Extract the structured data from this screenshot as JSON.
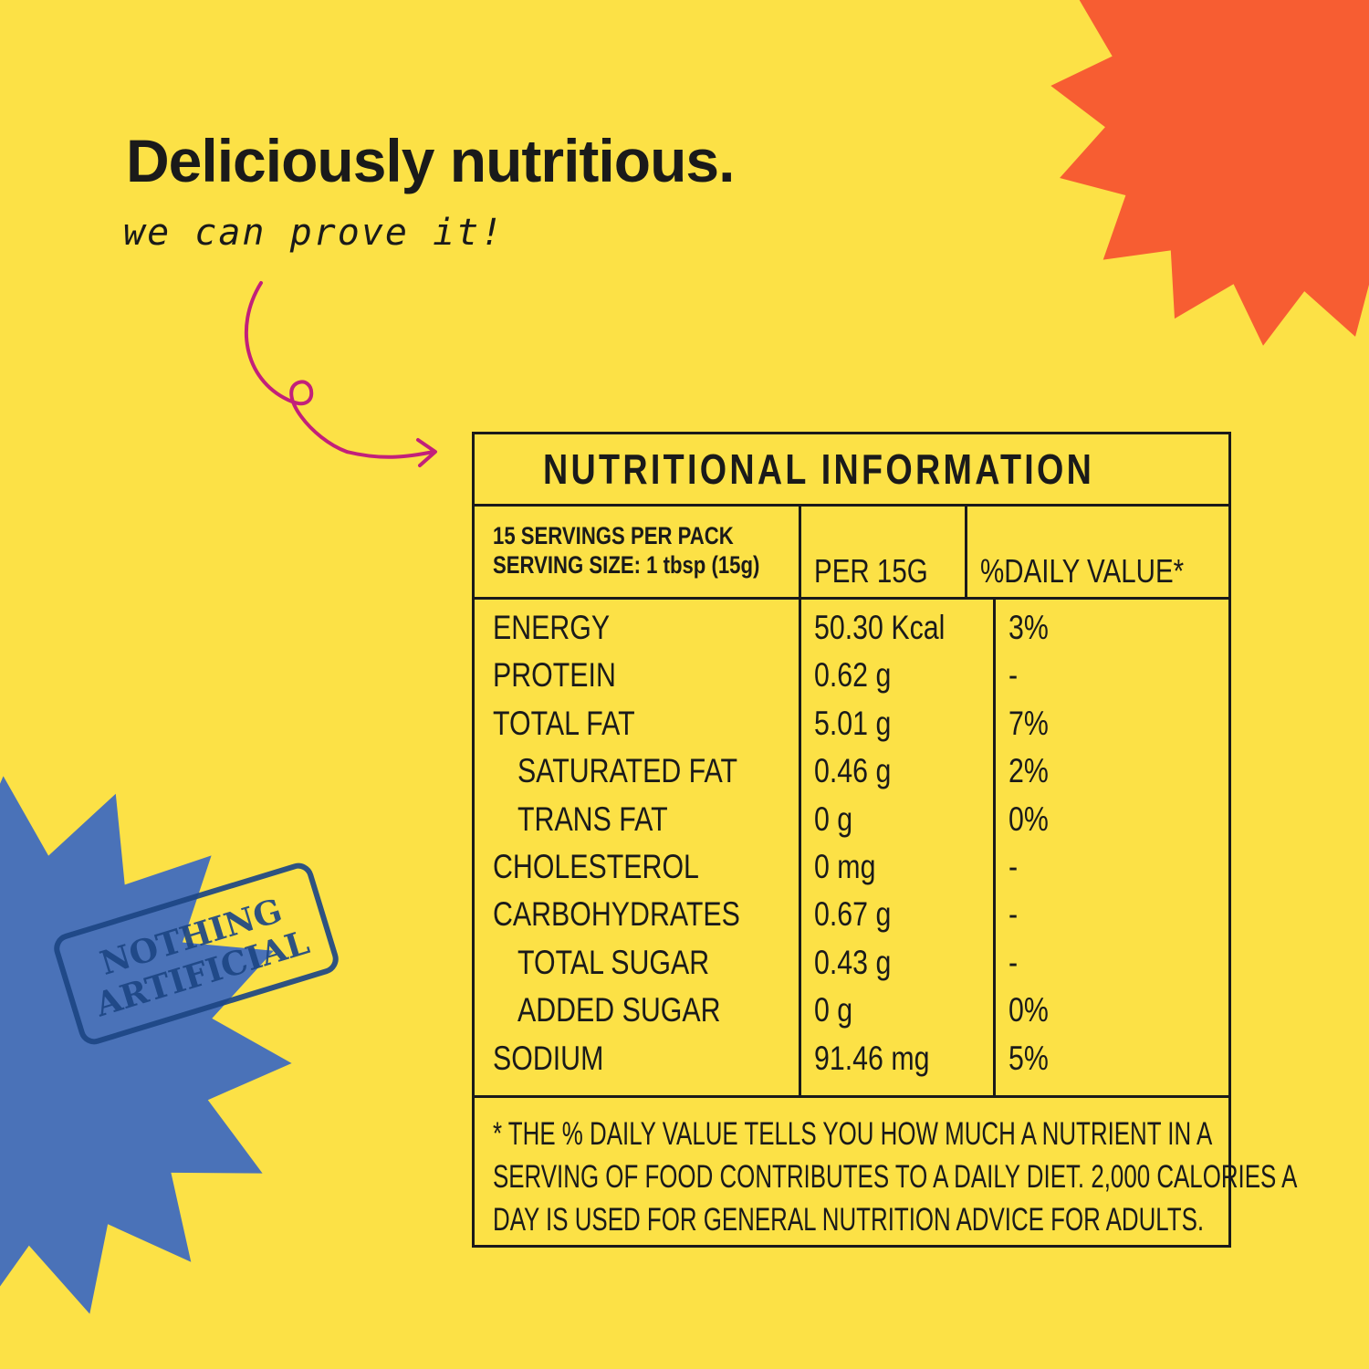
{
  "headline": "Deliciously nutritious.",
  "tagline": "we can prove it!",
  "stamp": {
    "line1": "NOTHING",
    "line2": "ARTIFICIAL"
  },
  "colors": {
    "background": "#FCE146",
    "orange_burst": "#F75D32",
    "blue_burst": "#4A72B8",
    "arrow": "#C2207A",
    "stamp": "#1D4685"
  },
  "table": {
    "title": "NUTRITIONAL INFORMATION",
    "servings": "15 SERVINGS PER PACK",
    "serving_size": "SERVING SIZE: 1 tbsp (15g)",
    "col_per": "PER 15G",
    "col_dv": "%DAILY VALUE*",
    "rows": [
      {
        "name": "ENERGY",
        "value": "50.30 Kcal",
        "dv": "3%",
        "indent": false
      },
      {
        "name": "PROTEIN",
        "value": "0.62 g",
        "dv": "-",
        "indent": false
      },
      {
        "name": "TOTAL FAT",
        "value": "5.01 g",
        "dv": "7%",
        "indent": false
      },
      {
        "name": "SATURATED FAT",
        "value": "0.46 g",
        "dv": "2%",
        "indent": true
      },
      {
        "name": "TRANS FAT",
        "value": "0 g",
        "dv": "0%",
        "indent": true
      },
      {
        "name": "CHOLESTEROL",
        "value": "0 mg",
        "dv": "-",
        "indent": false
      },
      {
        "name": "CARBOHYDRATES",
        "value": "0.67 g",
        "dv": "-",
        "indent": false
      },
      {
        "name": "TOTAL SUGAR",
        "value": "0.43 g",
        "dv": "-",
        "indent": true
      },
      {
        "name": "ADDED SUGAR",
        "value": "0 g",
        "dv": "0%",
        "indent": true
      },
      {
        "name": "SODIUM",
        "value": "91.46 mg",
        "dv": "5%",
        "indent": false
      }
    ],
    "footnote": [
      "* THE % DAILY VALUE TELLS YOU HOW MUCH A NUTRIENT IN A",
      "SERVING OF FOOD CONTRIBUTES TO A DAILY DIET. 2,000 CALORIES A",
      "DAY IS USED FOR GENERAL NUTRITION ADVICE FOR ADULTS."
    ]
  }
}
